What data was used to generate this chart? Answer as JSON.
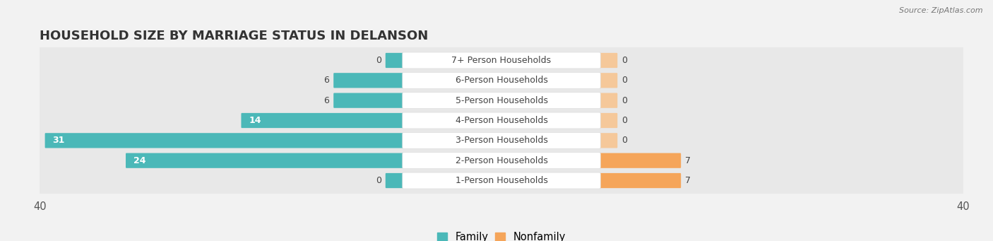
{
  "title": "HOUSEHOLD SIZE BY MARRIAGE STATUS IN DELANSON",
  "source": "Source: ZipAtlas.com",
  "categories": [
    "7+ Person Households",
    "6-Person Households",
    "5-Person Households",
    "4-Person Households",
    "3-Person Households",
    "2-Person Households",
    "1-Person Households"
  ],
  "family_values": [
    0,
    6,
    6,
    14,
    31,
    24,
    0
  ],
  "nonfamily_values": [
    0,
    0,
    0,
    0,
    0,
    7,
    7
  ],
  "family_color": "#4BB8B8",
  "nonfamily_color": "#F5A55A",
  "nonfamily_color_light": "#F5C89A",
  "xlim": 40,
  "bg_color": "#f2f2f2",
  "row_bg_color": "#e8e8e8",
  "row_bg_light": "#f8f8f8",
  "label_bg_color": "#ffffff",
  "title_fontsize": 13,
  "axis_fontsize": 10.5,
  "label_fontsize": 9.0,
  "value_fontsize": 9.0
}
